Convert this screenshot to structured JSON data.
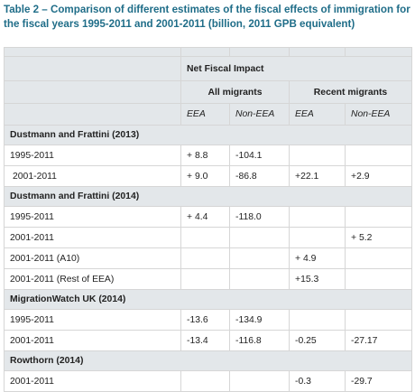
{
  "caption": "Table 2 – Comparison of different estimates of the fiscal effects of immigration for the fiscal years 1995-2011 and 2001-2011 (billion, 2011 GPB equivalent)",
  "header": {
    "group": "Net Fiscal Impact",
    "all_migrants": "All migrants",
    "recent_migrants": "Recent migrants",
    "cols": [
      "EEA",
      "Non-EEA",
      "EEA",
      "Non-EEA"
    ]
  },
  "sections": [
    {
      "title": "Dustmann and Frattini (2013)",
      "rows": [
        {
          "label": "1995-2011",
          "values": [
            "+ 8.8",
            "-104.1",
            "",
            ""
          ]
        },
        {
          "label": "2001-2011",
          "values": [
            "+ 9.0",
            "-86.8",
            "+22.1",
            "+2.9"
          ]
        }
      ]
    },
    {
      "title": "Dustmann and Frattini (2014)",
      "rows": [
        {
          "label": "1995-2011",
          "values": [
            "+ 4.4",
            "-118.0",
            "",
            ""
          ]
        },
        {
          "label": "2001-2011",
          "values": [
            "",
            "",
            "",
            "+ 5.2"
          ]
        },
        {
          "label": "2001-2011 (A10)",
          "values": [
            "",
            "",
            "+ 4.9",
            ""
          ]
        },
        {
          "label": "2001-2011 (Rest of EEA)",
          "values": [
            "",
            "",
            "+15.3",
            ""
          ]
        }
      ]
    },
    {
      "title": "MigrationWatch UK (2014)",
      "rows": [
        {
          "label": "1995-2011",
          "values": [
            "-13.6",
            "-134.9",
            "",
            ""
          ]
        },
        {
          "label": "2001-2011",
          "values": [
            "-13.4",
            "-116.8",
            "-0.25",
            "-27.17"
          ]
        }
      ]
    },
    {
      "title": "Rowthorn (2014)",
      "rows": [
        {
          "label": "2001-2011",
          "values": [
            "",
            "",
            "-0.3",
            "-29.7"
          ]
        }
      ]
    }
  ]
}
